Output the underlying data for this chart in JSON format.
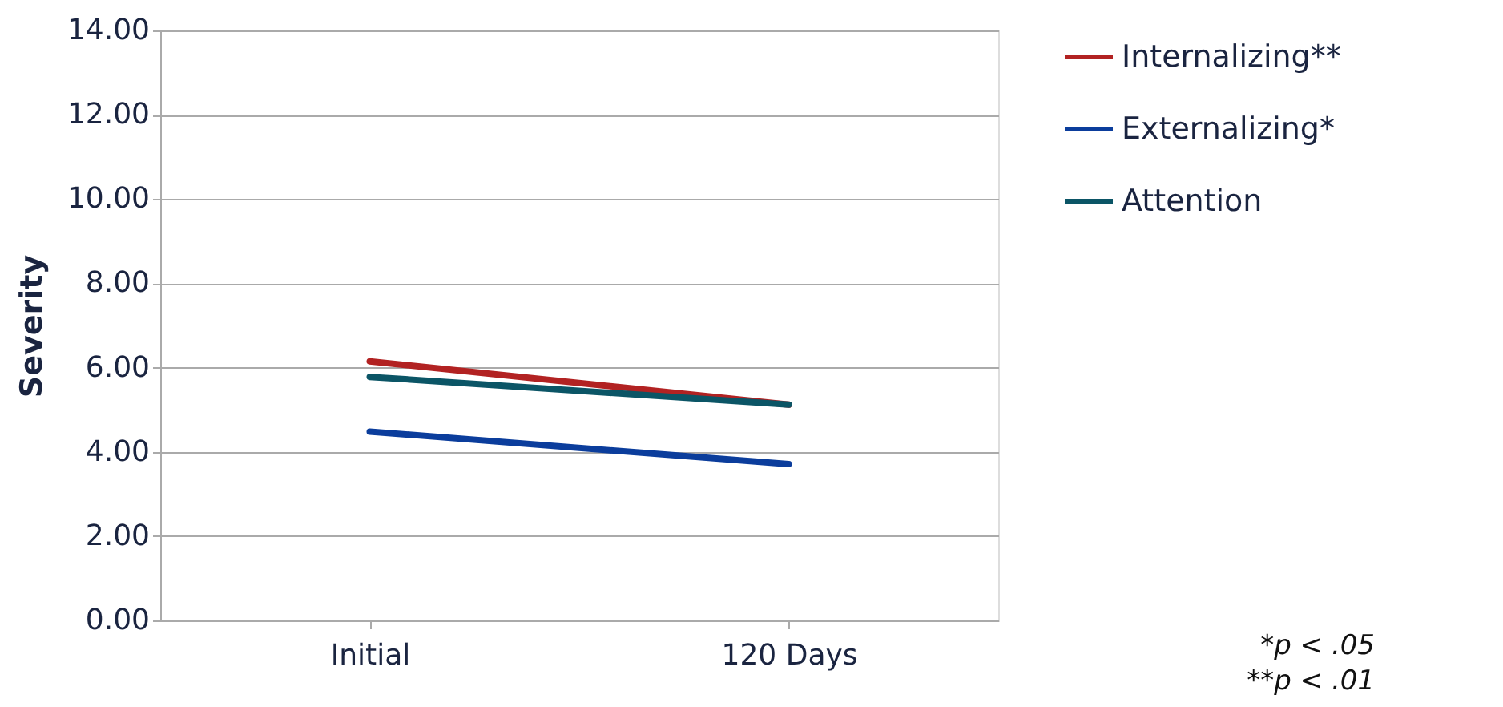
{
  "chart_data": {
    "type": "line",
    "ylabel": "Severity",
    "categories": [
      "Initial",
      "120 Days"
    ],
    "series": [
      {
        "name": "Internalizing**",
        "color": "#b22222",
        "values": [
          6.15,
          5.12
        ]
      },
      {
        "name": "Externalizing*",
        "color": "#0b3d9c",
        "values": [
          4.48,
          3.71
        ]
      },
      {
        "name": "Attention",
        "color": "#0b5566",
        "values": [
          5.78,
          5.12
        ]
      }
    ],
    "ylim": [
      0,
      14
    ],
    "yticks": [
      {
        "value": 0,
        "label": "0.00"
      },
      {
        "value": 2,
        "label": "2.00"
      },
      {
        "value": 4,
        "label": "4.00"
      },
      {
        "value": 6,
        "label": "6.00"
      },
      {
        "value": 8,
        "label": "8.00"
      },
      {
        "value": 10,
        "label": "10.00"
      },
      {
        "value": 12,
        "label": "12.00"
      },
      {
        "value": 14,
        "label": "14.00"
      }
    ],
    "grid": "y",
    "legend": "right",
    "marker": "none",
    "line_style": "solid",
    "annotations": [
      "*p < .05",
      "**p < .01"
    ]
  }
}
